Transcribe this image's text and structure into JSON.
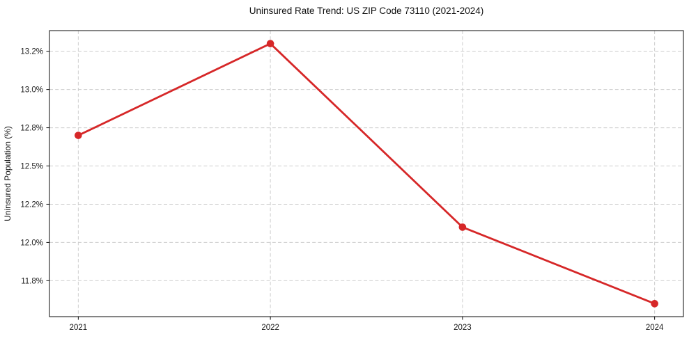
{
  "title": "Uninsured Rate Trend: US ZIP Code 73110 (2021-2024)",
  "chart_data": {
    "type": "line",
    "title": "Uninsured Rate Trend: US ZIP Code 73110 (2021-2024)",
    "xlabel": "",
    "ylabel": "Uninsured Population (%)",
    "x": [
      2021,
      2022,
      2023,
      2024
    ],
    "values": [
      12.7,
      13.3,
      12.1,
      11.6
    ],
    "series_name": "Uninsured population percent",
    "x_ticks": [
      {
        "value": 2021,
        "label": "2021"
      },
      {
        "value": 2022,
        "label": "2022"
      },
      {
        "value": 2023,
        "label": "2023"
      },
      {
        "value": 2024,
        "label": "2024"
      }
    ],
    "y_ticks": [
      {
        "value": 11.75,
        "label": "11.8%"
      },
      {
        "value": 12.0,
        "label": "12.0%"
      },
      {
        "value": 12.25,
        "label": "12.2%"
      },
      {
        "value": 12.5,
        "label": "12.5%"
      },
      {
        "value": 12.75,
        "label": "12.8%"
      },
      {
        "value": 13.0,
        "label": "13.0%"
      },
      {
        "value": 13.25,
        "label": "13.2%"
      }
    ],
    "xlim": [
      2020.85,
      2024.15
    ],
    "ylim": [
      11.515,
      13.385
    ],
    "grid": "dashed-both",
    "legend": "none",
    "colors": {
      "line": "#d62728",
      "marker": "#d62728",
      "grid": "#cccccc",
      "spine": "#0a0a0a",
      "background": "#ffffff"
    }
  }
}
